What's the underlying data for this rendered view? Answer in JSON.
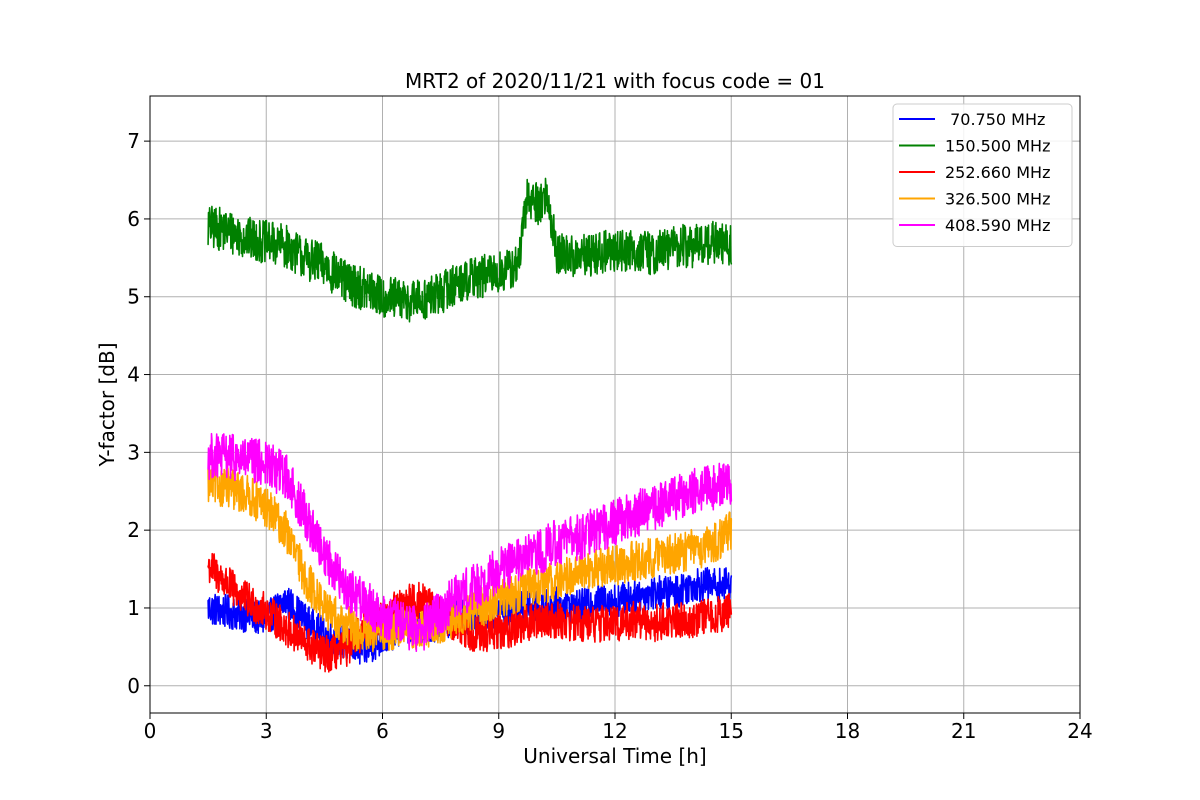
{
  "chart_data": {
    "type": "line",
    "title": "MRT2 of 2020/11/21 with focus code = 01",
    "xlabel": "Universal Time [h]",
    "ylabel": "Y-factor [dB]",
    "xlim": [
      0,
      24
    ],
    "ylim": [
      -0.35,
      7.58
    ],
    "xticks": [
      0,
      3,
      6,
      9,
      12,
      15,
      18,
      21,
      24
    ],
    "yticks": [
      0,
      1,
      2,
      3,
      4,
      5,
      6,
      7
    ],
    "grid": true,
    "legend_position": "top-right",
    "series": [
      {
        "name": " 70.750 MHz",
        "color": "#0000ff",
        "x": [
          1.5,
          2.0,
          2.5,
          3.0,
          3.5,
          4.0,
          4.5,
          5.0,
          5.5,
          6.0,
          6.5,
          7.0,
          7.5,
          8.0,
          8.5,
          9.0,
          9.5,
          10.0,
          10.5,
          11.0,
          11.5,
          12.0,
          12.5,
          13.0,
          13.5,
          14.0,
          14.5,
          15.0
        ],
        "y": [
          1.0,
          0.95,
          0.9,
          0.85,
          1.1,
          0.85,
          0.65,
          0.55,
          0.45,
          0.6,
          0.75,
          0.75,
          0.8,
          0.9,
          0.85,
          0.95,
          1.0,
          1.0,
          1.05,
          1.0,
          1.1,
          1.1,
          1.15,
          1.2,
          1.2,
          1.3,
          1.3,
          1.3
        ],
        "noise": 0.22
      },
      {
        "name": "150.500 MHz",
        "color": "#008000",
        "x": [
          1.5,
          2.0,
          2.5,
          3.0,
          3.5,
          4.0,
          4.5,
          5.0,
          5.5,
          6.0,
          6.5,
          7.0,
          7.5,
          8.0,
          8.5,
          9.0,
          9.5,
          9.75,
          10.0,
          10.25,
          10.5,
          11.0,
          11.5,
          12.0,
          12.5,
          13.0,
          13.5,
          14.0,
          14.5,
          15.0
        ],
        "y": [
          5.9,
          5.85,
          5.75,
          5.7,
          5.65,
          5.5,
          5.4,
          5.2,
          5.1,
          5.0,
          4.95,
          4.95,
          5.05,
          5.2,
          5.25,
          5.3,
          5.4,
          6.3,
          6.2,
          6.3,
          5.55,
          5.5,
          5.55,
          5.6,
          5.6,
          5.55,
          5.65,
          5.65,
          5.7,
          5.65
        ],
        "noise": 0.28
      },
      {
        "name": "252.660 MHz",
        "color": "#ff0000",
        "x": [
          1.5,
          2.0,
          2.5,
          3.0,
          3.5,
          4.0,
          4.5,
          5.0,
          5.5,
          6.0,
          6.5,
          7.0,
          7.5,
          8.0,
          8.5,
          9.0,
          9.5,
          10.0,
          10.5,
          11.0,
          11.5,
          12.0,
          12.5,
          13.0,
          13.5,
          14.0,
          14.5,
          15.0
        ],
        "y": [
          1.55,
          1.3,
          1.1,
          0.95,
          0.75,
          0.55,
          0.4,
          0.45,
          0.7,
          0.85,
          1.05,
          1.1,
          0.9,
          0.75,
          0.65,
          0.7,
          0.75,
          0.85,
          0.85,
          0.8,
          0.8,
          0.8,
          0.85,
          0.8,
          0.85,
          0.85,
          0.9,
          0.95
        ],
        "noise": 0.24
      },
      {
        "name": "326.500 MHz",
        "color": "#ffa500",
        "x": [
          1.5,
          2.0,
          2.5,
          3.0,
          3.5,
          4.0,
          4.5,
          5.0,
          5.5,
          6.0,
          6.5,
          7.0,
          7.5,
          8.0,
          8.5,
          9.0,
          9.5,
          10.0,
          10.5,
          11.0,
          11.5,
          12.0,
          12.5,
          13.0,
          13.5,
          14.0,
          14.5,
          15.0
        ],
        "y": [
          2.6,
          2.55,
          2.45,
          2.3,
          2.0,
          1.4,
          1.0,
          0.8,
          0.65,
          0.7,
          0.75,
          0.7,
          0.8,
          0.9,
          1.0,
          1.1,
          1.2,
          1.3,
          1.35,
          1.45,
          1.5,
          1.55,
          1.6,
          1.65,
          1.7,
          1.75,
          1.8,
          2.0
        ],
        "noise": 0.26
      },
      {
        "name": "408.590 MHz",
        "color": "#ff00ff",
        "x": [
          1.5,
          2.0,
          2.5,
          3.0,
          3.5,
          4.0,
          4.5,
          5.0,
          5.5,
          6.0,
          6.5,
          7.0,
          7.5,
          8.0,
          8.5,
          9.0,
          9.5,
          10.0,
          10.5,
          11.0,
          11.5,
          12.0,
          12.5,
          13.0,
          13.5,
          14.0,
          14.5,
          15.0
        ],
        "y": [
          2.95,
          2.95,
          2.9,
          2.85,
          2.7,
          2.2,
          1.7,
          1.3,
          1.1,
          0.9,
          0.8,
          0.7,
          0.95,
          1.2,
          1.3,
          1.5,
          1.6,
          1.7,
          1.85,
          1.9,
          2.0,
          2.1,
          2.2,
          2.3,
          2.4,
          2.5,
          2.55,
          2.6
        ],
        "noise": 0.3
      }
    ]
  }
}
